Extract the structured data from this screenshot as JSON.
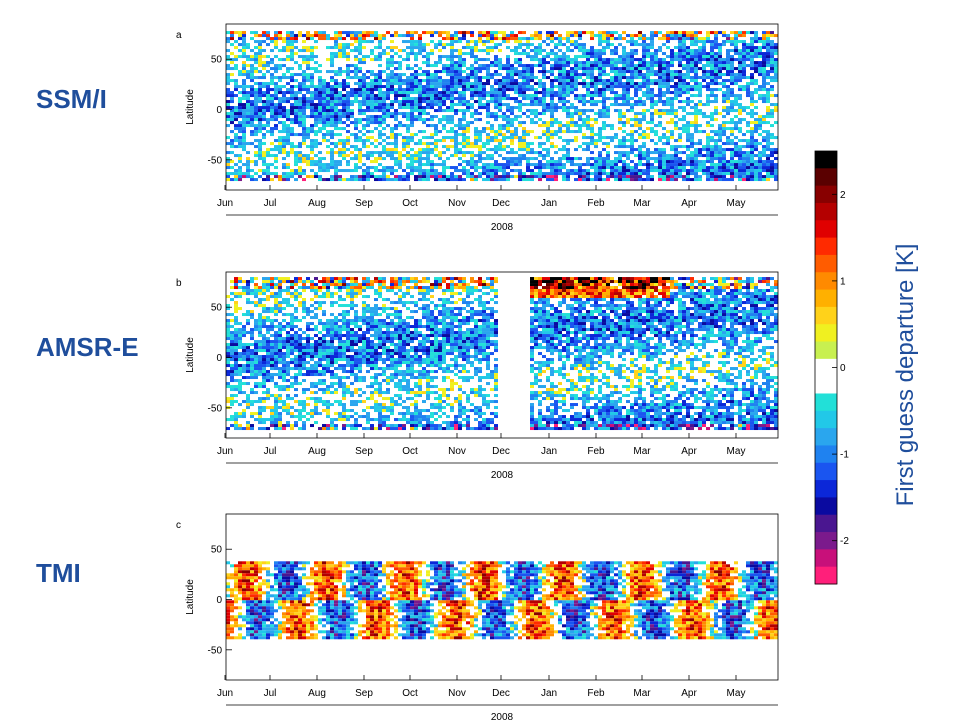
{
  "chart_data": {
    "type": "heatmap",
    "row_labels": [
      "SSM/I",
      "AMSR-E",
      "TMI"
    ],
    "panels": [
      {
        "letter": "a",
        "sensor": "SSM/I",
        "ylabel": "Latitude",
        "yticks": [
          50,
          0,
          -50
        ],
        "ylim": [
          -80,
          85
        ],
        "coverage_lat": [
          -70,
          78
        ],
        "gaps": [],
        "xlabel": "2008"
      },
      {
        "letter": "b",
        "sensor": "AMSR-E",
        "ylabel": "Latitude",
        "yticks": [
          50,
          0,
          -50
        ],
        "ylim": [
          -80,
          85
        ],
        "coverage_lat": [
          -72,
          80
        ],
        "gaps": [
          [
            "Dec",
            "Jan"
          ]
        ],
        "xlabel": "2008"
      },
      {
        "letter": "c",
        "sensor": "TMI",
        "ylabel": "Latitude",
        "yticks": [
          50,
          0,
          -50
        ],
        "ylim": [
          -80,
          85
        ],
        "coverage_lat": [
          -38,
          38
        ],
        "gaps": [],
        "xlabel": "2008"
      }
    ],
    "x_tick_labels": [
      "Jun",
      "Jul",
      "Aug",
      "Sep",
      "Oct",
      "Nov",
      "Dec",
      "Jan",
      "Feb",
      "Mar",
      "Apr",
      "May"
    ],
    "colorbar": {
      "title": "First guess departure [K]",
      "range": [
        -2.5,
        2.5
      ],
      "ticks": [
        "2",
        "1",
        "0",
        "-1",
        "-2"
      ],
      "tick_values": [
        2,
        1,
        0,
        -1,
        -2
      ],
      "colors": [
        "#ff1f7a",
        "#c8107a",
        "#7b1a8c",
        "#4a1690",
        "#0a0aa0",
        "#0b27d8",
        "#1a55f0",
        "#1f82f0",
        "#2aa6ee",
        "#22c8e8",
        "#22e0d8",
        "#ffffff",
        "#ffffff",
        "#c8f050",
        "#f0f020",
        "#ffd21a",
        "#ffb000",
        "#ff8a00",
        "#ff5c00",
        "#ff2a00",
        "#e00000",
        "#b40000",
        "#880000",
        "#5a0000",
        "#000000"
      ]
    }
  }
}
